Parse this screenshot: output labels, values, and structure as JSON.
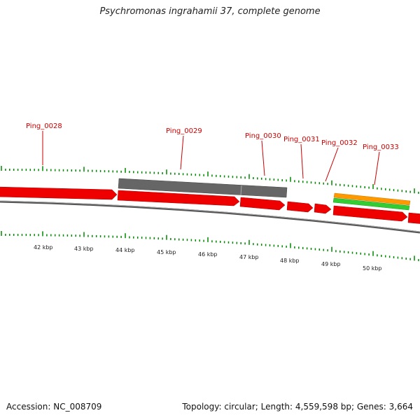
{
  "title": "Psychromonas ingrahamii 37, complete genome",
  "accession": "Accession: NC_008709",
  "topology": "Topology: circular; Length: 4,559,598 bp; Genes: 3,664",
  "colors": {
    "gene": "#ee0000",
    "pseudo": "#666666",
    "orange": "#ff9900",
    "green": "#33cc33",
    "tick": "#008800",
    "label": "#cc0000"
  },
  "gene_labels": [
    "Ping_0028",
    "Ping_0029",
    "Ping_0030",
    "Ping_0031",
    "Ping_0032",
    "Ping_0033"
  ],
  "kbp_labels": [
    "42 kbp",
    "43 kbp",
    "44 kbp",
    "45 kbp",
    "46 kbp",
    "47 kbp",
    "48 kbp",
    "49 kbp",
    "50 kbp"
  ]
}
